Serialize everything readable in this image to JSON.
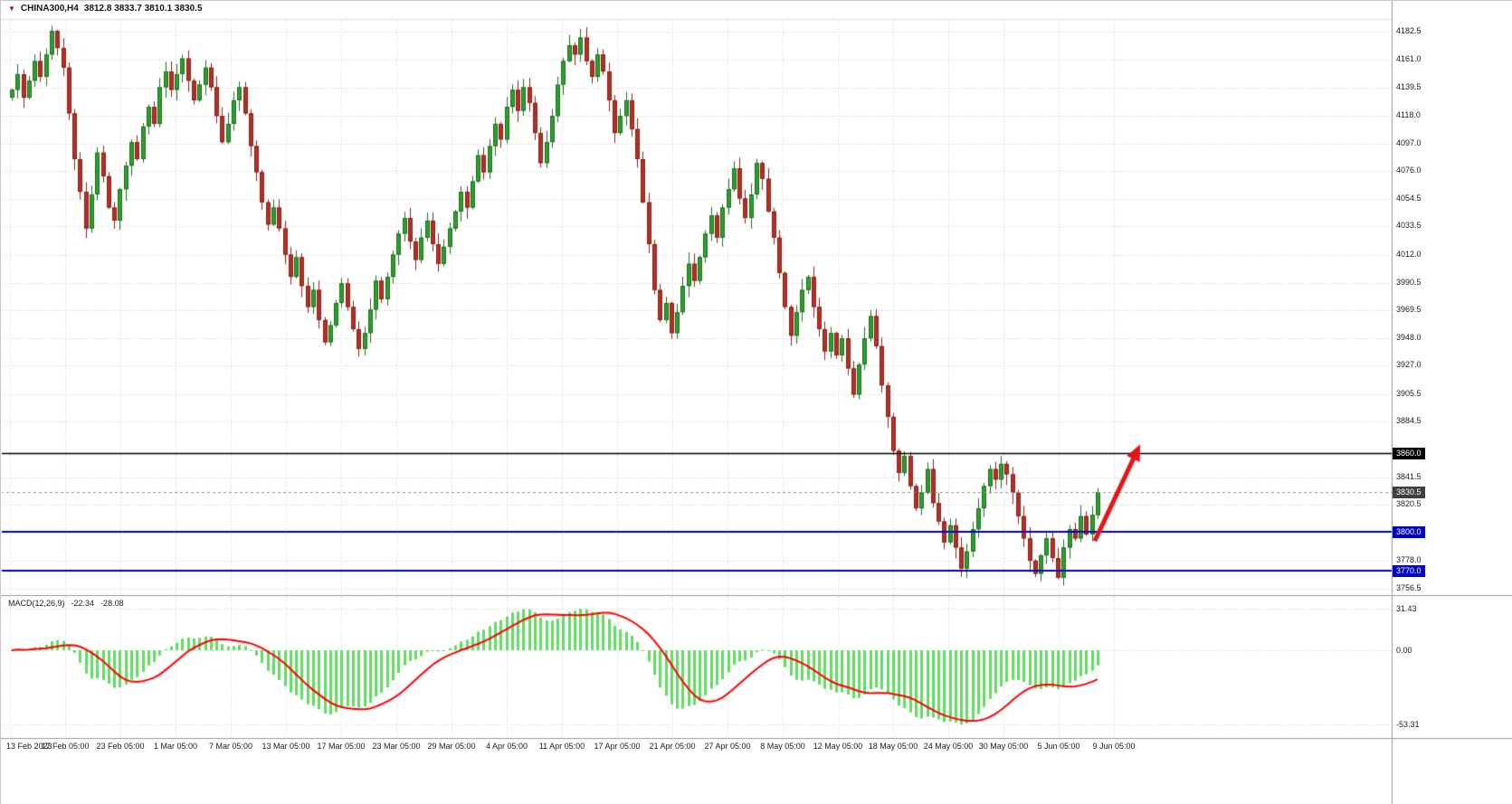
{
  "window": {
    "title_symbol": "CHINA300,H4",
    "title_ohlc": "3812.8 3833.7 3810.1 3830.5"
  },
  "colors": {
    "background": "#ffffff",
    "grid": "#cfcfcf",
    "separator": "#9a9a9a",
    "axis_text": "#1c1c1c",
    "bull": "#2f9e2f",
    "bull_border": "#1e6f1e",
    "bear": "#b33025",
    "bear_border": "#87221a",
    "macd_hist": "#61dd61",
    "macd_signal": "#ff0000"
  },
  "y_axis": {
    "labels": [
      "4182.5",
      "4161.0",
      "4139.5",
      "4118.0",
      "4097.0",
      "4076.0",
      "4054.5",
      "4033.5",
      "4012.0",
      "3990.5",
      "3969.5",
      "3948.0",
      "3927.0",
      "3905.5",
      "3884.5",
      "3841.5",
      "3820.5",
      "3778.0",
      "3756.5"
    ]
  },
  "x_axis": {
    "labels": [
      "13 Feb 2023",
      "17 Feb 05:00",
      "23 Feb 05:00",
      "1 Mar 05:00",
      "7 Mar 05:00",
      "13 Mar 05:00",
      "17 Mar 05:00",
      "23 Mar 05:00",
      "29 Mar 05:00",
      "4 Apr 05:00",
      "11 Apr 05:00",
      "17 Apr 05:00",
      "21 Apr 05:00",
      "27 Apr 05:00",
      "8 May 05:00",
      "12 May 05:00",
      "18 May 05:00",
      "24 May 05:00",
      "30 May 05:00",
      "5 Jun 05:00",
      "9 Jun 05:00"
    ]
  },
  "levels": [
    {
      "price": 3860.0,
      "label": "3860.0",
      "color": "#000000",
      "line_width": 1.5
    },
    {
      "price": 3800.0,
      "label": "3800.0",
      "color": "#0000c8",
      "line_width": 2
    },
    {
      "price": 3770.0,
      "label": "3770.0",
      "color": "#0000c8",
      "line_width": 2
    }
  ],
  "current_price": {
    "price": 3830.5,
    "label": "3830.5",
    "badge_color": "#3f3f3f",
    "line_color": "#909090"
  },
  "macd_panel": {
    "label": "MACD(12,26,9)",
    "value_main": "-22.34",
    "value_signal": "-28.08",
    "scale_labels": [
      {
        "text": "31.43",
        "value": 31.43
      },
      {
        "text": "0.00",
        "value": 0
      },
      {
        "text": "-53.31",
        "value": -53.31
      }
    ]
  },
  "chart_data": {
    "type": "candlestick",
    "symbol": "CHINA300",
    "timeframe": "H4",
    "title": "CHINA300,H4",
    "ylim": [
      3756.5,
      4182.5
    ],
    "grid": true,
    "closes": [
      4138,
      4150,
      4132,
      4145,
      4160,
      4148,
      4165,
      4183,
      4170,
      4155,
      4120,
      4085,
      4060,
      4032,
      4058,
      4090,
      4072,
      4048,
      4038,
      4062,
      4080,
      4098,
      4085,
      4110,
      4125,
      4112,
      4140,
      4152,
      4138,
      4150,
      4162,
      4145,
      4130,
      4142,
      4155,
      4140,
      4118,
      4098,
      4112,
      4130,
      4140,
      4120,
      4095,
      4075,
      4052,
      4035,
      4048,
      4032,
      4012,
      3995,
      4010,
      3988,
      3972,
      3985,
      3962,
      3945,
      3958,
      3975,
      3990,
      3972,
      3955,
      3940,
      3952,
      3970,
      3992,
      3978,
      3995,
      4012,
      4028,
      4040,
      4022,
      4008,
      4025,
      4038,
      4020,
      4005,
      4018,
      4032,
      4045,
      4060,
      4048,
      4068,
      4088,
      4075,
      4095,
      4112,
      4100,
      4125,
      4138,
      4122,
      4140,
      4128,
      4105,
      4082,
      4098,
      4118,
      4142,
      4160,
      4172,
      4165,
      4178,
      4160,
      4148,
      4165,
      4152,
      4130,
      4105,
      4118,
      4130,
      4108,
      4085,
      4052,
      4020,
      3985,
      3962,
      3975,
      3952,
      3968,
      3988,
      4005,
      3992,
      4010,
      4028,
      4042,
      4025,
      4048,
      4062,
      4078,
      4055,
      4040,
      4058,
      4082,
      4070,
      4045,
      4025,
      3998,
      3972,
      3950,
      3968,
      3985,
      3995,
      3972,
      3955,
      3938,
      3952,
      3935,
      3948,
      3925,
      3905,
      3928,
      3948,
      3965,
      3942,
      3912,
      3888,
      3862,
      3845,
      3858,
      3835,
      3818,
      3830,
      3848,
      3822,
      3808,
      3792,
      3805,
      3788,
      3772,
      3785,
      3802,
      3818,
      3835,
      3848,
      3840,
      3852,
      3844,
      3830,
      3812,
      3795,
      3778,
      3768,
      3782,
      3795,
      3780,
      3765,
      3788,
      3802,
      3795,
      3812,
      3798,
      3813,
      3830.5
    ],
    "last_bar": {
      "open": 3812.8,
      "high": 3833.7,
      "low": 3810.1,
      "close": 3830.5
    },
    "indicator": {
      "name": "MACD",
      "fast": 12,
      "slow": 26,
      "signal": 9,
      "current_main": -22.34,
      "current_signal": -28.08,
      "scale_max": 31.43,
      "scale_min": -53.31
    },
    "trend_arrow": {
      "from": {
        "bar": 190.5,
        "price": 3793
      },
      "to": {
        "bar": 198.5,
        "price": 3867
      },
      "color": "#e81414"
    }
  }
}
